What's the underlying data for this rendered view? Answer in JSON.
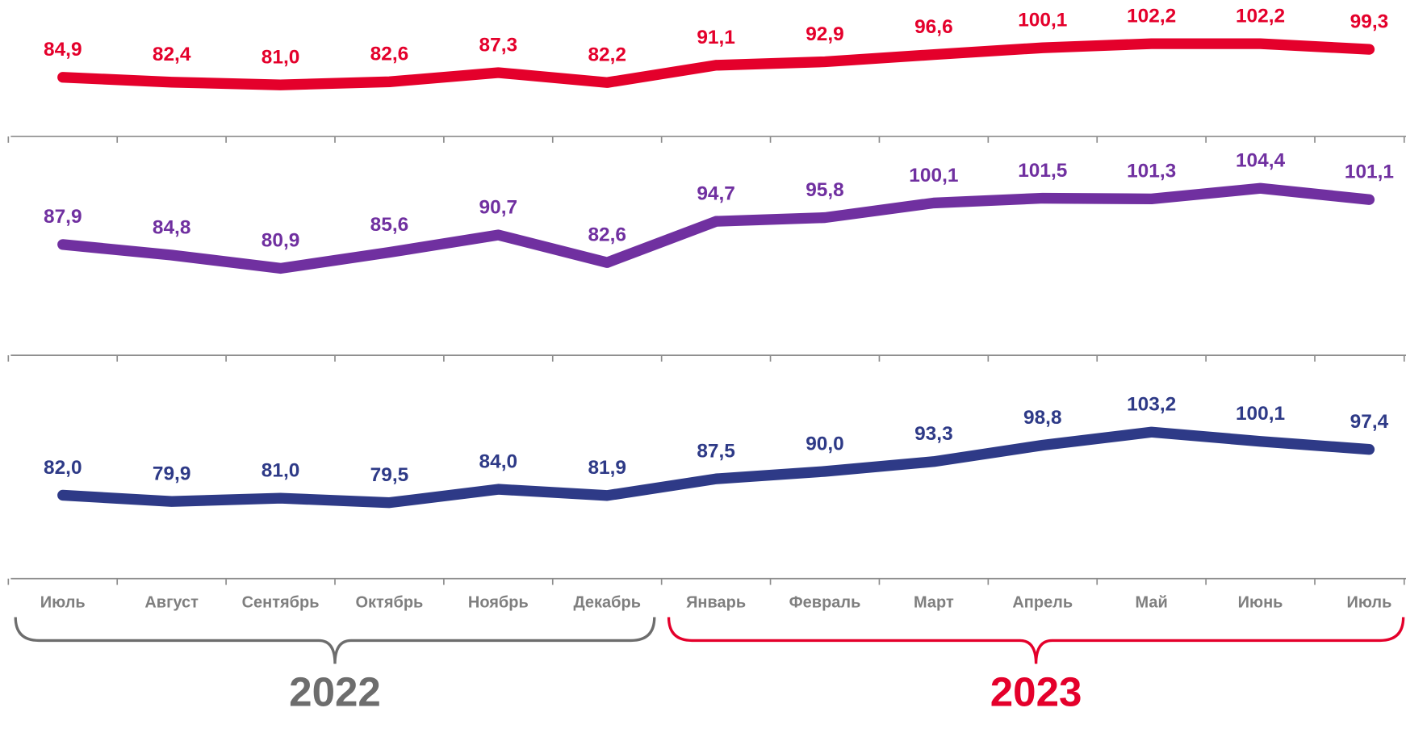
{
  "chart_data": {
    "type": "line",
    "categories": [
      "Июль",
      "Август",
      "Сентябрь",
      "Октябрь",
      "Ноябрь",
      "Декабрь",
      "Январь",
      "Февраль",
      "Март",
      "Апрель",
      "Май",
      "Июнь",
      "Июль"
    ],
    "series": [
      {
        "color": "#e4002b",
        "ylim": [
          60,
          120
        ],
        "values": [
          84.9,
          82.4,
          81.0,
          82.6,
          87.3,
          82.2,
          91.1,
          92.9,
          96.6,
          100.1,
          102.2,
          102.2,
          99.3
        ],
        "value_labels": [
          "84,9",
          "82,4",
          "81,0",
          "82,6",
          "87,3",
          "82,2",
          "91,1",
          "92,9",
          "96,6",
          "100,1",
          "102,2",
          "102,2",
          "99,3"
        ]
      },
      {
        "color": "#7030a0",
        "ylim": [
          58,
          117
        ],
        "values": [
          87.9,
          84.8,
          80.9,
          85.6,
          90.7,
          82.6,
          94.7,
          95.8,
          100.1,
          101.5,
          101.3,
          104.4,
          101.1
        ],
        "value_labels": [
          "87,9",
          "84,8",
          "80,9",
          "85,6",
          "90,7",
          "82,6",
          "94,7",
          "95,8",
          "100,1",
          "101,5",
          "101,3",
          "104,4",
          "101,1"
        ]
      },
      {
        "color": "#2e3a87",
        "ylim": [
          57,
          126
        ],
        "values": [
          82.0,
          79.9,
          81.0,
          79.5,
          84.0,
          81.9,
          87.5,
          90.0,
          93.3,
          98.8,
          103.2,
          100.1,
          97.4
        ],
        "value_labels": [
          "82,0",
          "79,9",
          "81,0",
          "79,5",
          "84,0",
          "81,9",
          "87,5",
          "90,0",
          "93,3",
          "98,8",
          "103,2",
          "100,1",
          "97,4"
        ]
      }
    ],
    "annotations": [
      {
        "text": "2022",
        "color": "#6d6d6d",
        "span": [
          0,
          5
        ]
      },
      {
        "text": "2023",
        "color": "#e4002b",
        "span": [
          6,
          12
        ]
      }
    ]
  }
}
